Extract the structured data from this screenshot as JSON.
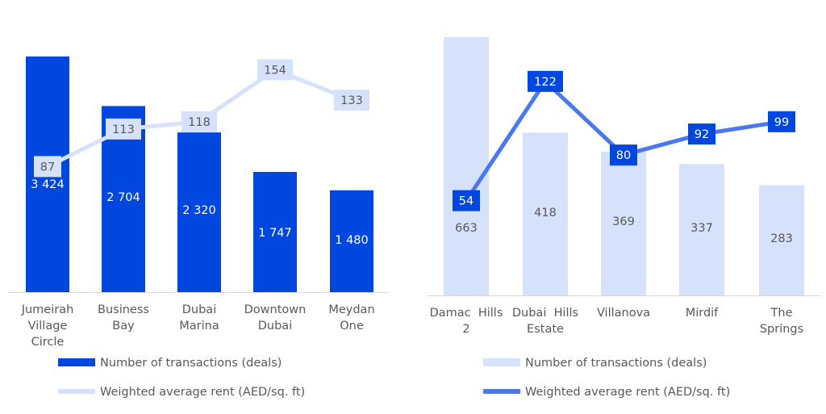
{
  "chart_data": [
    {
      "type": "bar",
      "categories": [
        [
          "Jumeirah",
          "Village",
          "Circle"
        ],
        [
          "Business",
          "Bay"
        ],
        [
          "Dubai",
          "Marina"
        ],
        [
          "Downtown",
          "Dubai"
        ],
        [
          "Meydan",
          "One"
        ]
      ],
      "bar_series": {
        "name": "Number of transactions (deals)",
        "values": [
          3424,
          2704,
          2320,
          1747,
          1480
        ],
        "labels": [
          "3 424",
          "2 704",
          "2 320",
          "1 747",
          "1 480"
        ],
        "color": "#0047e0"
      },
      "line_series": {
        "name": "Weighted average rent (AED/sq. ft)",
        "values": [
          87,
          113,
          118,
          154,
          133
        ],
        "color": "#d6e1fb"
      },
      "bar_ylim": [
        0,
        3800
      ],
      "line_ylim": [
        0,
        180
      ],
      "legend": "bottom"
    },
    {
      "type": "bar",
      "categories": [
        [
          "Damac  Hills",
          "2"
        ],
        [
          "Dubai  Hills",
          "Estate"
        ],
        [
          "Villanova"
        ],
        [
          "Mirdif"
        ],
        [
          "The",
          "Springs"
        ]
      ],
      "bar_series": {
        "name": "Number of transactions (deals)",
        "values": [
          663,
          418,
          369,
          337,
          283
        ],
        "labels": [
          "663",
          "418",
          "369",
          "337",
          "283"
        ],
        "color": "#d6e1fb"
      },
      "line_series": {
        "name": "Weighted average rent (AED/sq. ft)",
        "values": [
          54,
          122,
          80,
          92,
          99
        ],
        "color": "#4a78ef"
      },
      "bar_ylim": [
        0,
        670
      ],
      "line_ylim": [
        0,
        150
      ],
      "legend": "bottom"
    }
  ]
}
